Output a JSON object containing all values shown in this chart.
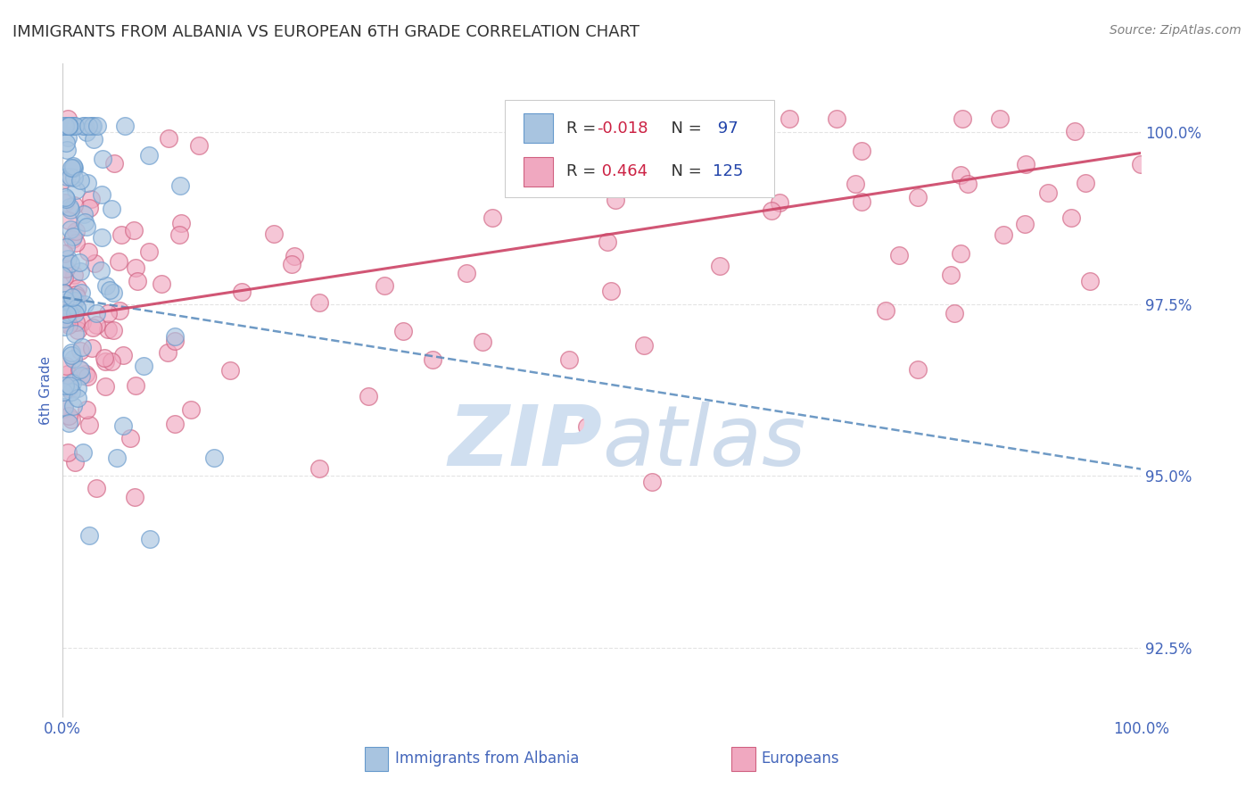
{
  "title": "IMMIGRANTS FROM ALBANIA VS EUROPEAN 6TH GRADE CORRELATION CHART",
  "source": "Source: ZipAtlas.com",
  "ylabel": "6th Grade",
  "y_ticks": [
    92.5,
    95.0,
    97.5,
    100.0
  ],
  "y_tick_labels": [
    "92.5%",
    "95.0%",
    "97.5%",
    "100.0%"
  ],
  "albania_R": -0.018,
  "albania_N": 97,
  "european_R": 0.464,
  "european_N": 125,
  "albania_color": "#a8c4e0",
  "albania_edge_color": "#6699cc",
  "european_color": "#f0a8c0",
  "european_edge_color": "#d06080",
  "albania_line_color": "#5588bb",
  "european_line_color": "#cc4466",
  "legend_R_color": "#cc2244",
  "legend_N_color": "#2244aa",
  "watermark_color": "#d0dff0",
  "background_color": "#ffffff",
  "title_color": "#333333",
  "axis_color": "#4466bb",
  "grid_color": "#dddddd",
  "xlim": [
    0,
    100
  ],
  "ylim": [
    91.5,
    101.0
  ],
  "albania_trend_start_y": 97.6,
  "albania_trend_end_y": 95.1,
  "european_trend_start_y": 97.3,
  "european_trend_end_y": 99.7
}
